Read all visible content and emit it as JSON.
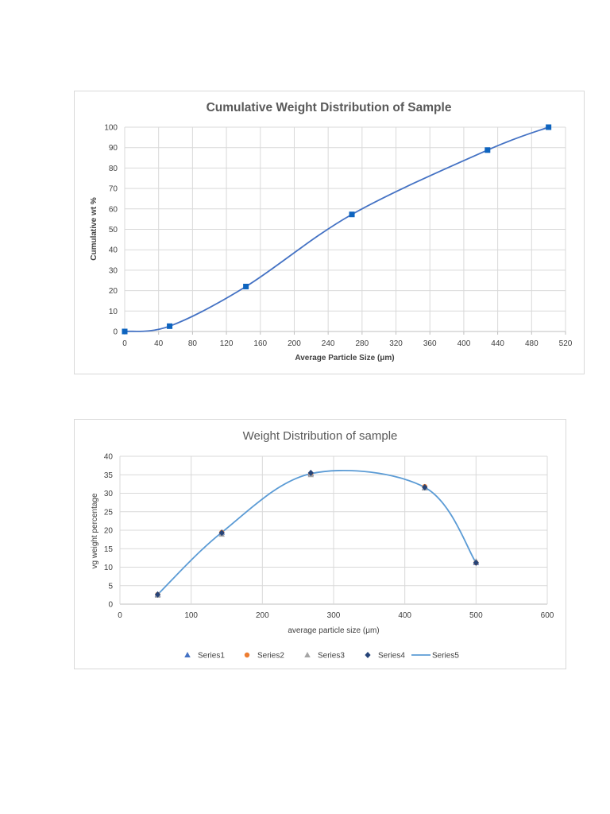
{
  "chart_data": [
    {
      "type": "scatter",
      "title": "Cumulative Weight Distribution of Sample",
      "xlabel": "Average Particle Size (μm)",
      "ylabel": "Cumulative wt %",
      "xlim": [
        0,
        520
      ],
      "ylim": [
        0,
        100
      ],
      "xticks": [
        0,
        40,
        80,
        120,
        160,
        200,
        240,
        280,
        320,
        360,
        400,
        440,
        480,
        520
      ],
      "yticks": [
        0,
        10,
        20,
        30,
        40,
        50,
        60,
        70,
        80,
        90,
        100
      ],
      "grid": true,
      "smooth": true,
      "color": "#4472c4",
      "marker_color": "#0e64bf",
      "series": [
        {
          "x": [
            0,
            53,
            143,
            268,
            428,
            500
          ],
          "y": [
            0,
            2.6,
            22,
            57.3,
            88.8,
            100
          ]
        }
      ]
    },
    {
      "type": "scatter",
      "title": "Weight Distribution of sample",
      "xlabel": "average particle size (μm)",
      "ylabel": "vg weight percentage",
      "xlim": [
        0,
        600
      ],
      "ylim": [
        0,
        40
      ],
      "xticks": [
        0,
        100,
        200,
        300,
        400,
        500,
        600
      ],
      "yticks": [
        0,
        5,
        10,
        15,
        20,
        25,
        30,
        35,
        40
      ],
      "grid": true,
      "legend_position": "bottom",
      "series": [
        {
          "name": "Series1",
          "marker": "triangle",
          "color": "#4472c4",
          "x": [
            53,
            143,
            268,
            428,
            500
          ],
          "y": [
            2.6,
            19.4,
            35.3,
            31.5,
            11.2
          ]
        },
        {
          "name": "Series2",
          "marker": "circle",
          "color": "#ed7d31",
          "x": [
            53,
            143,
            268,
            428,
            500
          ],
          "y": [
            2.6,
            19.4,
            35.3,
            31.8,
            11.2
          ]
        },
        {
          "name": "Series3",
          "marker": "triangle",
          "color": "#a5a5a5",
          "x": [
            53,
            143,
            268,
            428,
            500
          ],
          "y": [
            2.4,
            18.9,
            35.0,
            31.4,
            11.6
          ]
        },
        {
          "name": "Series4",
          "marker": "diamond",
          "color": "#264478",
          "x": [
            53,
            143,
            268,
            428,
            500
          ],
          "y": [
            2.6,
            19.3,
            35.5,
            31.6,
            11.2
          ]
        },
        {
          "name": "Series5",
          "marker": "line",
          "color": "#5b9bd5",
          "x": [
            53,
            143,
            268,
            428,
            500
          ],
          "y": [
            2.6,
            19.4,
            35.3,
            31.6,
            11.2
          ]
        }
      ]
    }
  ]
}
